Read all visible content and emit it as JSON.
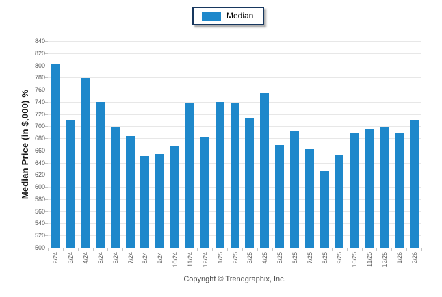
{
  "legend": {
    "label": "Median",
    "swatch_color": "#1E88CB"
  },
  "footer": {
    "copyright": "Copyright © Trendgraphix, Inc."
  },
  "colors": {
    "bar": "#1E88CB",
    "grid": "#E7E7E7",
    "axis": "#C4C4C4",
    "tick_text": "#595959",
    "legend_border": "#17375E"
  },
  "chart_data": {
    "type": "bar",
    "title": "",
    "ylabel": "Median Price (in $,000) %",
    "xlabel": "",
    "ylim": [
      500,
      840
    ],
    "yticks": [
      840,
      820,
      800,
      780,
      760,
      740,
      720,
      700,
      680,
      660,
      640,
      620,
      600,
      580,
      560,
      540,
      520,
      500
    ],
    "grid": true,
    "legend_position": "top-center",
    "categories": [
      "2/24",
      "3/24",
      "4/24",
      "5/24",
      "6/24",
      "7/24",
      "8/24",
      "9/24",
      "10/24",
      "11/24",
      "12/24",
      "1/25",
      "2/25",
      "3/25",
      "4/25",
      "5/25",
      "6/25",
      "7/25",
      "8/25",
      "9/25",
      "10/25",
      "11/25",
      "12/25",
      "1/26",
      "2/26"
    ],
    "series": [
      {
        "name": "Median",
        "color": "#1E88CB",
        "values": [
          803,
          709,
          779,
          740,
          698,
          684,
          651,
          654,
          668,
          739,
          682,
          740,
          737,
          714,
          754,
          669,
          691,
          662,
          626,
          652,
          688,
          696,
          698,
          689,
          710
        ]
      }
    ]
  }
}
